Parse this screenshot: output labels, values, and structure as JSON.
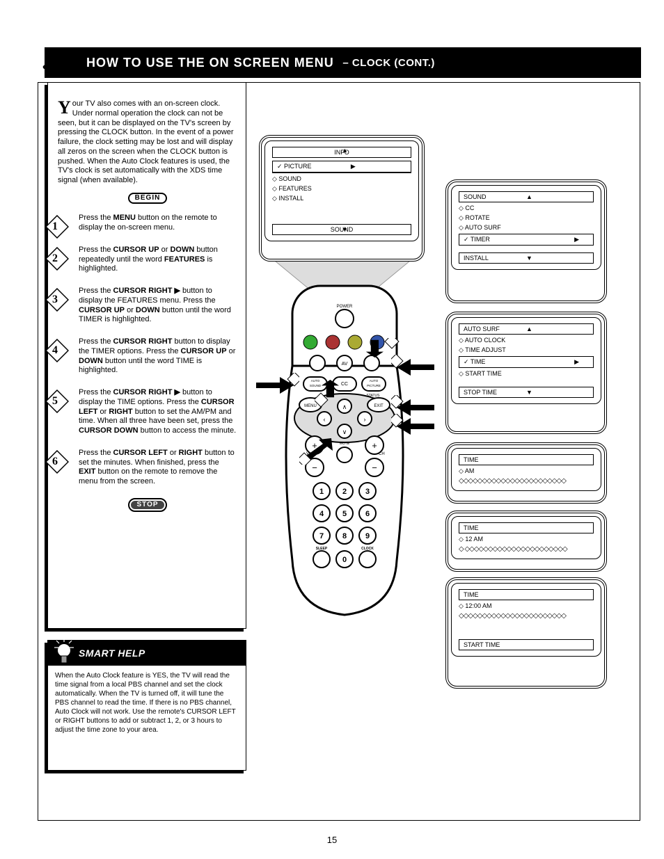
{
  "header": {
    "title_main": "HOW TO USE THE ON SCREEN MENU",
    "title_sub": "CLOCK (CONT.)"
  },
  "intro": {
    "drop_cap": "Y",
    "text": "our TV also comes with an on-screen clock. Under normal operation the clock can not be seen, but it can be displayed on the TV's screen by pressing the CLOCK button. In the event of a power failure, the clock setting may be lost and will display all zeros on the screen when the CLOCK button is pushed. When the Auto Clock features is used, the TV's clock is set automatically with the XDS time signal (when available)."
  },
  "steps": [
    {
      "n": "1",
      "html": "Press the <b>MENU</b> button on the remote to display the on-screen menu."
    },
    {
      "n": "2",
      "html": "Press the <b>CURSOR UP</b> or <b>DOWN</b> button repeatedly until the word <b>FEATURES</b> is highlighted."
    },
    {
      "n": "3",
      "html": "Press the <b>CURSOR RIGHT ▶</b> button to display the FEATURES menu. Press the <b>CURSOR UP</b> or <b>DOWN</b> button until the word TIMER is highlighted."
    },
    {
      "n": "4",
      "html": "Press the <b>CURSOR RIGHT</b> button to display the TIMER options. Press the <b>CURSOR UP</b> or <b>DOWN</b> button until the word TIME is highlighted."
    },
    {
      "n": "5",
      "html": "Press the <b>CURSOR RIGHT ▶</b> button to display the TIME options. Press the <b>CURSOR LEFT</b> or <b>RIGHT</b> button to set the AM/PM and time. When all three have been set, press the <b>CURSOR DOWN</b> button to access the minute."
    },
    {
      "n": "6",
      "html": "Press the <b>CURSOR LEFT</b> or <b>RIGHT</b> button to set the minutes. When finished, press the <b>EXIT</b> button on the remote to remove the menu from the screen."
    }
  ],
  "help": {
    "title": "SMART HELP",
    "body": "When the Auto Clock feature is YES, the TV will read the time signal from a local PBS channel and set the clock automatically. When the TV is turned off, it will tune the PBS channel to read the time. If there is no PBS channel, Auto Clock will not work. Use the remote's CURSOR LEFT or RIGHT buttons to add or subtract 1, 2, or 3 hours to adjust the time zone to your area."
  },
  "tv_main": {
    "top": "INFO",
    "sel": "PICTURE",
    "items": [
      "SOUND",
      "FEATURES",
      "INSTALL"
    ],
    "bottom": "SOUND"
  },
  "right_panels": [
    {
      "top_bar": "SOUND",
      "items": [
        {
          "t": "CC",
          "mark": "◇"
        },
        {
          "t": "ROTATE",
          "mark": "◇"
        },
        {
          "t": "AUTO SURF",
          "mark": "◇"
        },
        {
          "t": "TIMER",
          "mark": "✓",
          "arrow": true
        }
      ],
      "bottom_bar": "INSTALL"
    },
    {
      "top_bar": "AUTO SURF",
      "items": [
        {
          "t": "AUTO CLOCK",
          "mark": "◇"
        },
        {
          "t": "TIME ADJUST",
          "mark": "◇"
        },
        {
          "t": "TIME",
          "mark": "✓",
          "arrow": true
        },
        {
          "t": "START TIME",
          "mark": "◇"
        }
      ],
      "bottom_bar": "STOP TIME"
    },
    {
      "bar": "TIME",
      "row": "◇  AM",
      "dline": "◇◇◇◇◇◇◇◇◇◇◇◇◇◇◇◇◇◇◇◇◇◇◇"
    },
    {
      "bar": "TIME",
      "row": "◇  12 AM",
      "dline": "◇ ◇◇◇◇◇◇◇◇◇◇◇◇◇◇◇◇◇◇◇◇◇◇"
    },
    {
      "bar": "TIME",
      "row": "◇  12:00 AM",
      "dline": "◇◇◇◇◇◇◇◇◇◇◇◇◇◇◇◇◇◇◇◇◇◇◇",
      "bottom_bar": "START TIME"
    }
  ],
  "remote_labels": {
    "power": "POWER",
    "av": "AV",
    "autosound": "AUTO\nSOUND",
    "cc": "CC",
    "autopic": "AUTO\nPICTURE",
    "status": "STATUS",
    "menu": "MENU",
    "exit": "EXIT",
    "mute": "MUTE",
    "vol": "VOL",
    "ch": "CH",
    "sleep": "SLEEP",
    "clock": "CLOCK"
  },
  "page_number": "15"
}
